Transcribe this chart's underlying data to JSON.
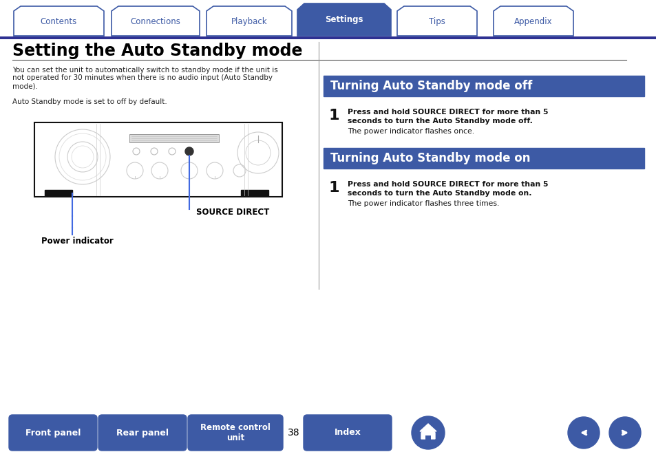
{
  "bg_color": "#ffffff",
  "tab_color_inactive_bg": "#ffffff",
  "tab_color_inactive_border": "#3d5aa5",
  "tab_color_active_bg": "#3d5aa5",
  "tab_color_active_text": "#ffffff",
  "tab_color_inactive_text": "#3d5aa5",
  "tabs": [
    "Contents",
    "Connections",
    "Playback",
    "Settings",
    "Tips",
    "Appendix"
  ],
  "active_tab": 3,
  "tab_line_color": "#2e3192",
  "main_title": "Setting the Auto Standby mode",
  "main_title_color": "#000000",
  "hr_color": "#555555",
  "body_text_line1": "You can set the unit to automatically switch to standby mode if the unit is",
  "body_text_line2": "not operated for 30 minutes when there is no audio input (Auto Standby",
  "body_text_line3": "mode).",
  "body_text_line4": "Auto Standby mode is set to off by default.",
  "body_text_color": "#222222",
  "section1_title": "Turning Auto Standby mode off",
  "section2_title": "Turning Auto Standby mode on",
  "section_bg": "#3d5aa5",
  "section_text_color": "#ffffff",
  "step1_bold_off_l1": "Press and hold SOURCE DIRECT for more than 5",
  "step1_bold_off_l2": "seconds to turn the Auto Standby mode off.",
  "step1_normal_off": "The power indicator flashes once.",
  "step1_bold_on_l1": "Press and hold SOURCE DIRECT for more than 5",
  "step1_bold_on_l2": "seconds to turn the Auto Standby mode on.",
  "step1_normal_on": "The power indicator flashes three times.",
  "label_source_direct": "SOURCE DIRECT",
  "label_power_indicator": "Power indicator",
  "label_color": "#000000",
  "arrow_color": "#4169e1",
  "bottom_page_num": "38",
  "bottom_btn_color": "#3d5aa5",
  "bottom_btn_text_color": "#ffffff"
}
